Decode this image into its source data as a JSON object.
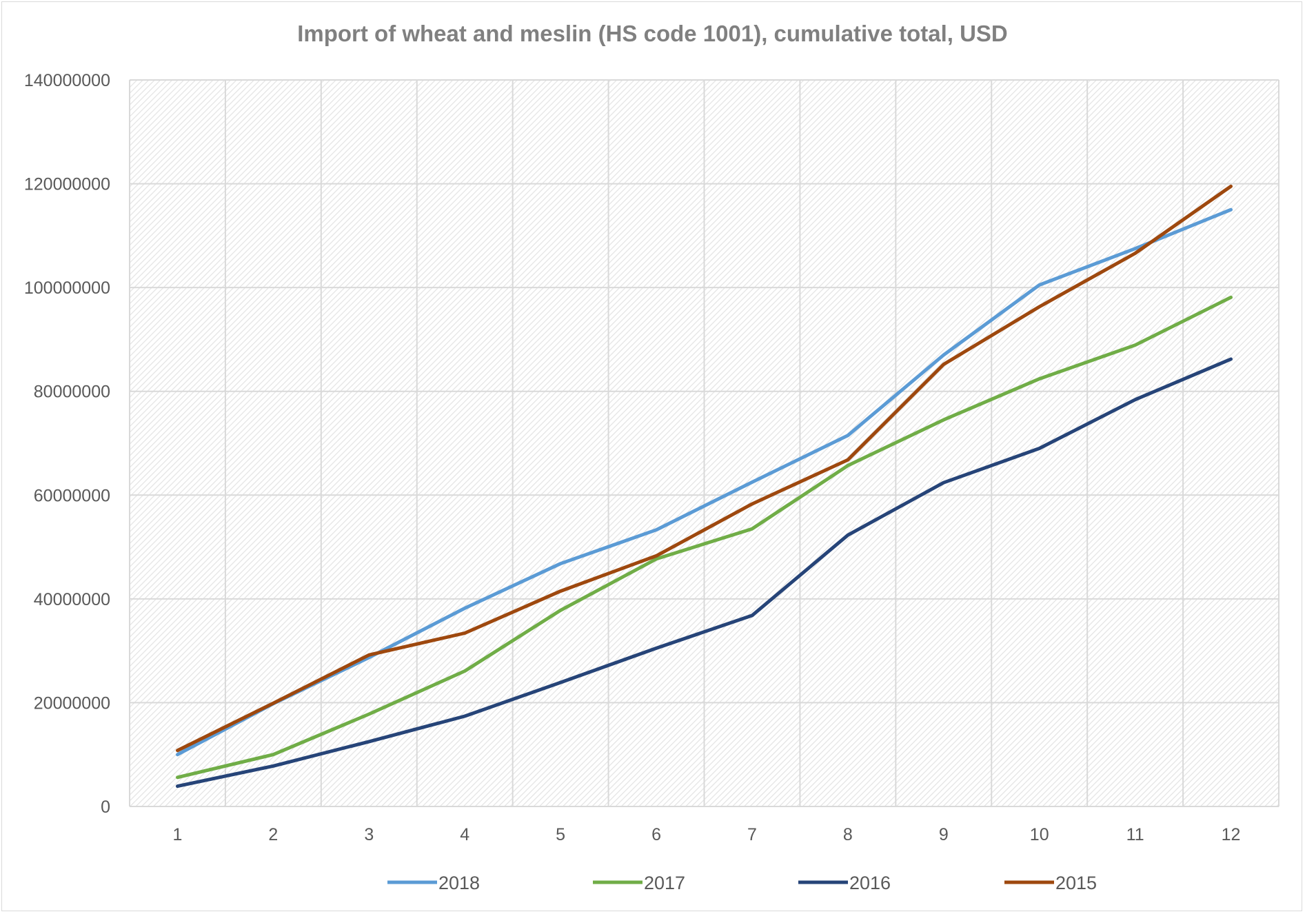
{
  "chart_data": {
    "type": "line",
    "title": "Import of wheat and meslin (HS code 1001), cumulative total, USD",
    "xlabel": "",
    "ylabel": "",
    "x": [
      1,
      2,
      3,
      4,
      5,
      6,
      7,
      8,
      9,
      10,
      11,
      12
    ],
    "ylim": [
      0,
      140000000
    ],
    "yticks": [
      0,
      20000000,
      40000000,
      60000000,
      80000000,
      100000000,
      120000000,
      140000000
    ],
    "grid": true,
    "legend_position": "bottom",
    "series": [
      {
        "name": "2018",
        "color": "#5b9bd5",
        "values": [
          10000000,
          19800000,
          28700000,
          38200000,
          46800000,
          53300000,
          62500000,
          71500000,
          87000000,
          100500000,
          107500000,
          115000000
        ]
      },
      {
        "name": "2017",
        "color": "#70ad47",
        "values": [
          5600000,
          10000000,
          17800000,
          26100000,
          37800000,
          47700000,
          53500000,
          65700000,
          74500000,
          82400000,
          88900000,
          98100000
        ]
      },
      {
        "name": "2016",
        "color": "#264478",
        "values": [
          3900000,
          7800000,
          12500000,
          17400000,
          23900000,
          30500000,
          36800000,
          52300000,
          62400000,
          69000000,
          78400000,
          86200000
        ]
      },
      {
        "name": "2015",
        "color": "#9e480e",
        "values": [
          10800000,
          19900000,
          29200000,
          33400000,
          41500000,
          48300000,
          58300000,
          66800000,
          85200000,
          96300000,
          106600000,
          119500000
        ]
      }
    ]
  }
}
